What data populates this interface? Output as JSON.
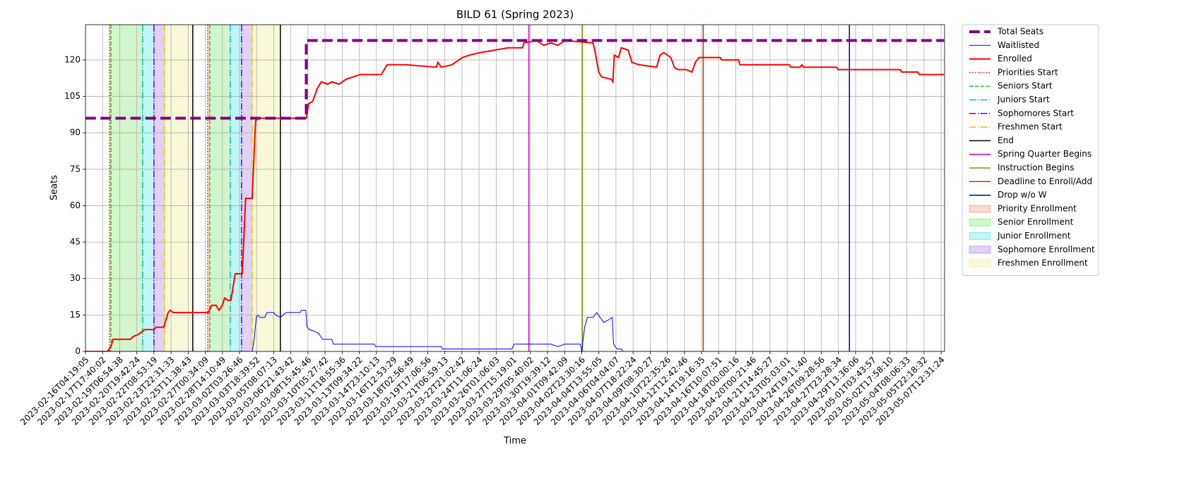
{
  "chart_data": {
    "type": "line",
    "title": "BILD 61 (Spring 2023)",
    "xlabel": "Time",
    "ylabel": "Seats",
    "xlim": [
      0,
      50.2
    ],
    "ylim": [
      0,
      134.5
    ],
    "grid": true,
    "legend": "outside upper right",
    "yticks": [
      0,
      15,
      30,
      45,
      60,
      75,
      90,
      105,
      120
    ],
    "xticks": [
      {
        "value": 0,
        "label": "2023-02-16T04:19:05"
      },
      {
        "value": 1,
        "label": "2023-02-17T17:40:02"
      },
      {
        "value": 2,
        "label": "2023-02-19T06:54:38"
      },
      {
        "value": 3,
        "label": "2023-02-20T19:42:24"
      },
      {
        "value": 4,
        "label": "2023-02-22T08:53:19"
      },
      {
        "value": 5,
        "label": "2023-02-23T22:31:33"
      },
      {
        "value": 6,
        "label": "2023-02-25T11:38:43"
      },
      {
        "value": 7,
        "label": "2023-02-27T00:34:09"
      },
      {
        "value": 8,
        "label": "2023-02-28T14:10:49"
      },
      {
        "value": 9,
        "label": "2023-03-02T03:26:46"
      },
      {
        "value": 10,
        "label": "2023-03-03T18:39:52"
      },
      {
        "value": 11,
        "label": "2023-03-05T08:07:13"
      },
      {
        "value": 12,
        "label": "2023-03-06T21:43:42"
      },
      {
        "value": 13,
        "label": "2023-03-08T15:45:46"
      },
      {
        "value": 14,
        "label": "2023-03-10T05:27:42"
      },
      {
        "value": 15,
        "label": "2023-03-11T18:55:36"
      },
      {
        "value": 16,
        "label": "2023-03-13T09:34:22"
      },
      {
        "value": 17,
        "label": "2023-03-14T23:10:13"
      },
      {
        "value": 18,
        "label": "2023-03-16T12:53:29"
      },
      {
        "value": 19,
        "label": "2023-03-18T02:56:49"
      },
      {
        "value": 20,
        "label": "2023-03-19T17:06:56"
      },
      {
        "value": 21,
        "label": "2023-03-21T06:59:13"
      },
      {
        "value": 22,
        "label": "2023-03-22T21:02:42"
      },
      {
        "value": 23,
        "label": "2023-03-24T11:06:24"
      },
      {
        "value": 24,
        "label": "2023-03-26T01:06:03"
      },
      {
        "value": 25,
        "label": "2023-03-27T15:19:01"
      },
      {
        "value": 26,
        "label": "2023-03-29T05:40:02"
      },
      {
        "value": 27,
        "label": "2023-03-30T19:39:12"
      },
      {
        "value": 28,
        "label": "2023-04-01T09:42:09"
      },
      {
        "value": 29,
        "label": "2023-04-02T23:30:16"
      },
      {
        "value": 30,
        "label": "2023-04-04T13:55:05"
      },
      {
        "value": 31,
        "label": "2023-04-06T04:04:07"
      },
      {
        "value": 32,
        "label": "2023-04-07T18:22:24"
      },
      {
        "value": 33,
        "label": "2023-04-09T08:30:27"
      },
      {
        "value": 34,
        "label": "2023-04-10T22:35:26"
      },
      {
        "value": 35,
        "label": "2023-04-12T12:42:46"
      },
      {
        "value": 36,
        "label": "2023-04-14T19:16:35"
      },
      {
        "value": 37,
        "label": "2023-04-16T10:07:51"
      },
      {
        "value": 38,
        "label": "2023-04-18T00:00:16"
      },
      {
        "value": 39,
        "label": "2023-04-20T00:21:46"
      },
      {
        "value": 40,
        "label": "2023-04-21T14:45:27"
      },
      {
        "value": 41,
        "label": "2023-04-23T05:03:01"
      },
      {
        "value": 42,
        "label": "2023-04-24T19:11:40"
      },
      {
        "value": 43,
        "label": "2023-04-26T09:28:56"
      },
      {
        "value": 44,
        "label": "2023-04-27T23:28:34"
      },
      {
        "value": 45,
        "label": "2023-04-29T13:36:06"
      },
      {
        "value": 46,
        "label": "2023-05-01T03:43:57"
      },
      {
        "value": 47,
        "label": "2023-05-02T17:58:10"
      },
      {
        "value": 48,
        "label": "2023-05-04T08:06:33"
      },
      {
        "value": 49,
        "label": "2023-05-05T22:18:32"
      },
      {
        "value": 50,
        "label": "2023-05-07T12:31:24"
      }
    ],
    "series": [
      {
        "name": "Total Seats",
        "color": "#800080",
        "linewidth": 4,
        "linestyle": "dashed",
        "x": [
          0,
          12.9,
          12.9,
          50.17
        ],
        "values": [
          96,
          96,
          128,
          128
        ]
      },
      {
        "name": "Waitlisted",
        "color": "#0000ff",
        "linewidth": 1,
        "linestyle": "solid",
        "x": [
          0,
          9.74,
          9.86,
          9.98,
          10.07,
          10.19,
          10.48,
          10.6,
          11.01,
          11.1,
          11.39,
          11.72,
          12.54,
          12.62,
          12.87,
          12.95,
          13.08,
          13.49,
          13.66,
          13.86,
          14.4,
          14.48,
          16.87,
          16.96,
          20.79,
          20.87,
          24.92,
          25.04,
          27.19,
          27.6,
          28.01,
          28.92,
          29.0,
          29.17,
          29.33,
          29.66,
          29.87,
          30.07,
          30.28,
          30.57,
          30.78,
          30.86,
          31.06,
          31.31,
          31.39,
          50.17
        ],
        "values": [
          0,
          0,
          5,
          14,
          15,
          14,
          14,
          16,
          16,
          15,
          14,
          16,
          16,
          17,
          17,
          10,
          9,
          8,
          7,
          5,
          5,
          3,
          3,
          2,
          2,
          1,
          1,
          3,
          3,
          2,
          3,
          3,
          0,
          10,
          14,
          14,
          16,
          14,
          12,
          13,
          14,
          3,
          1,
          1,
          0,
          0
        ]
      },
      {
        "name": "Enrolled",
        "color": "#ff0000",
        "linewidth": 2,
        "linestyle": "solid",
        "x": [
          0,
          1.28,
          1.49,
          1.61,
          2.64,
          2.76,
          3.09,
          3.47,
          4.0,
          4.13,
          4.58,
          4.83,
          4.95,
          5.12,
          7.18,
          7.38,
          7.63,
          7.8,
          8.0,
          8.13,
          8.33,
          8.5,
          8.75,
          9.16,
          9.36,
          9.74,
          9.94,
          10.11,
          12.91,
          13.04,
          13.28,
          13.53,
          13.78,
          14.15,
          14.4,
          14.81,
          15.22,
          15.64,
          16.05,
          17.29,
          17.62,
          18.73,
          20.5,
          20.59,
          20.79,
          21.41,
          21.82,
          22.03,
          22.44,
          23.06,
          23.89,
          24.71,
          25.54,
          25.62,
          26.36,
          26.77,
          27.19,
          27.6,
          28.01,
          29.66,
          29.79,
          29.99,
          30.16,
          30.73,
          30.82,
          30.9,
          31.15,
          31.31,
          31.72,
          31.93,
          32.34,
          33.37,
          33.58,
          33.79,
          34.2,
          34.41,
          34.61,
          35.11,
          35.44,
          35.64,
          35.85,
          37.09,
          37.17,
          38.16,
          38.24,
          41.13,
          41.21,
          41.75,
          41.87,
          41.96,
          43.89,
          43.98,
          47.61,
          47.69,
          48.64,
          48.72,
          50.17
        ],
        "values": [
          0,
          0,
          2,
          5,
          5,
          6,
          7,
          9,
          9,
          10,
          10,
          16,
          17,
          16,
          16,
          19,
          19,
          17,
          19,
          22,
          21,
          21,
          32,
          32,
          63,
          63,
          95,
          96,
          96,
          102,
          103,
          108,
          111,
          110,
          111,
          110,
          112,
          113,
          114,
          114,
          118,
          118,
          117,
          119,
          117,
          118,
          120,
          121,
          122,
          123,
          124,
          125,
          125,
          127,
          128,
          126,
          127,
          126,
          128,
          127,
          123,
          115,
          113,
          112,
          111,
          122,
          121,
          125,
          124,
          119,
          118,
          117,
          122,
          123,
          121,
          117,
          116,
          116,
          115,
          119,
          121,
          121,
          120,
          120,
          118,
          118,
          117,
          117,
          118,
          117,
          117,
          116,
          116,
          115,
          115,
          114,
          114
        ]
      }
    ],
    "vlines": [
      {
        "name": "Priorities Start",
        "color": "#ff0000",
        "linestyle": "dotted",
        "x": [
          1.4,
          7.14
        ]
      },
      {
        "name": "Seniors Start",
        "color": "#22cc22",
        "linestyle": "dashed",
        "x": [
          1.49,
          7.26
        ]
      },
      {
        "name": "Juniors Start",
        "color": "#00bfbf",
        "linestyle": "dashdot",
        "x": [
          3.34,
          8.46
        ]
      },
      {
        "name": "Sophomores Start",
        "color": "#6a00dd",
        "linestyle": "dashdot",
        "x": [
          4.0,
          9.12
        ]
      },
      {
        "name": "Freshmen Start",
        "color": "#e6c800",
        "linestyle": "dashdot",
        "x": [
          4.62,
          9.74
        ]
      },
      {
        "name": "End",
        "color": "#000000",
        "linestyle": "solid",
        "x": [
          6.27,
          11.39
        ]
      },
      {
        "name": "Spring Quarter Begins",
        "color": "#cc00bb",
        "linestyle": "solid",
        "x": [
          25.91
        ]
      },
      {
        "name": "Instruction Begins",
        "color": "#7aa000",
        "linestyle": "solid",
        "x": [
          29.04
        ]
      },
      {
        "name": "Deadline to Enroll/Add",
        "color": "#cc3300",
        "linestyle": "solid",
        "x": [
          36.1
        ]
      },
      {
        "name": "Drop w/o W",
        "color": "#000080",
        "linestyle": "solid",
        "x": [
          44.64
        ]
      }
    ],
    "spans": [
      {
        "name": "Priority Enrollment",
        "color": "#f08060",
        "alpha": 0.3,
        "ranges": [
          [
            1.4,
            1.49
          ],
          [
            7.14,
            7.26
          ]
        ]
      },
      {
        "name": "Senior Enrollment",
        "color": "#66dd55",
        "alpha": 0.3,
        "ranges": [
          [
            1.49,
            3.34
          ],
          [
            7.26,
            8.46
          ]
        ]
      },
      {
        "name": "Junior Enrollment",
        "color": "#33dde0",
        "alpha": 0.3,
        "ranges": [
          [
            3.34,
            4.0
          ],
          [
            8.46,
            9.12
          ]
        ]
      },
      {
        "name": "Sophomore Enrollment",
        "color": "#9966dd",
        "alpha": 0.3,
        "ranges": [
          [
            4.0,
            4.62
          ],
          [
            9.12,
            9.74
          ]
        ]
      },
      {
        "name": "Freshmen Enrollment",
        "color": "#e8e880",
        "alpha": 0.3,
        "ranges": [
          [
            4.62,
            6.27
          ],
          [
            9.74,
            11.39
          ]
        ]
      }
    ]
  }
}
